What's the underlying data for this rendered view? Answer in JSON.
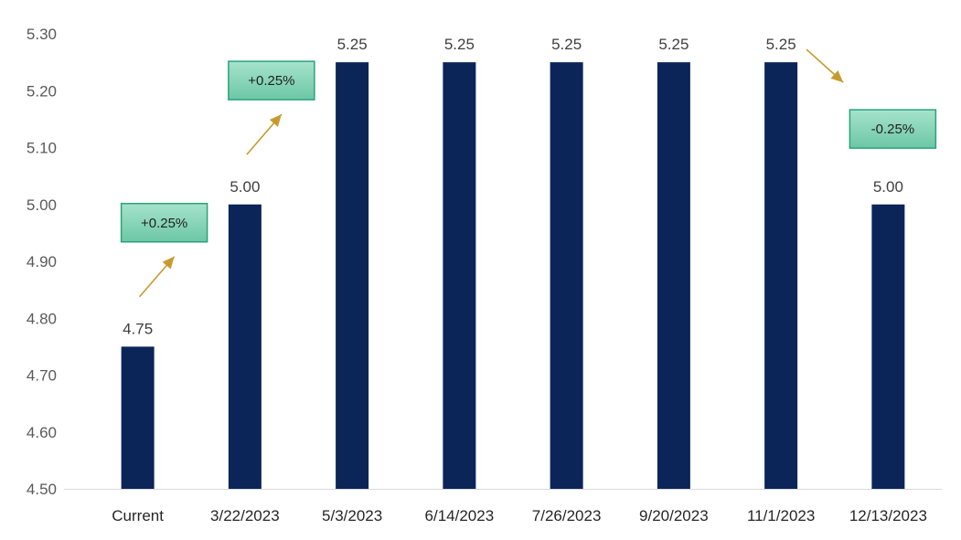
{
  "chart_data": {
    "type": "bar",
    "categories": [
      "Current",
      "3/22/2023",
      "5/3/2023",
      "6/14/2023",
      "7/26/2023",
      "9/20/2023",
      "11/1/2023",
      "12/13/2023"
    ],
    "values": [
      4.75,
      5.0,
      5.25,
      5.25,
      5.25,
      5.25,
      5.25,
      5.0
    ],
    "data_labels": [
      "4.75",
      "5.00",
      "5.25",
      "5.25",
      "5.25",
      "5.25",
      "5.25",
      "5.00"
    ],
    "yticks": [
      "4.50",
      "4.60",
      "4.70",
      "4.80",
      "4.90",
      "5.00",
      "5.10",
      "5.20",
      "5.30"
    ],
    "ylim": [
      4.5,
      5.3
    ],
    "grid": false,
    "legend": "none",
    "bar_color": "#0b2559",
    "annotations": [
      {
        "text": "+0.25%",
        "from": "Current",
        "to": "3/22/2023",
        "direction": "up"
      },
      {
        "text": "+0.25%",
        "from": "3/22/2023",
        "to": "5/3/2023",
        "direction": "up"
      },
      {
        "text": "-0.25%",
        "from": "11/1/2023",
        "to": "12/13/2023",
        "direction": "down"
      }
    ],
    "annotation_fill": "#7fd1b5",
    "annotation_border": "#2aa37a",
    "arrow_color": "#c79a2e"
  }
}
